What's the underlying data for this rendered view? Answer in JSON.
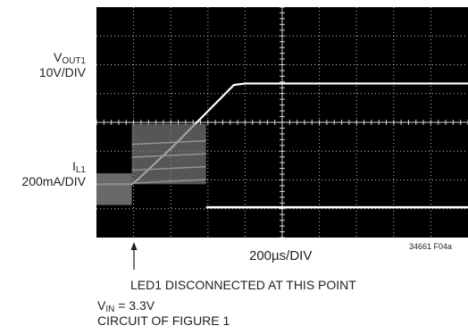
{
  "chart_data": {
    "type": "line",
    "title": "",
    "time_per_div": "200µs/DIV",
    "figure_id": "34661 F04a",
    "grid": true,
    "divisions": {
      "x": 10,
      "y": 8
    },
    "annotation": "LED1 DISCONNECTED AT THIS POINT",
    "conditions": [
      "V_IN = 3.3V",
      "CIRCUIT OF FIGURE 1"
    ],
    "channels": [
      {
        "name": "V_OUT1",
        "scale": "10V/DIV",
        "points_div": [
          [
            0,
            1.85
          ],
          [
            0.95,
            1.85
          ],
          [
            1.1,
            2.0
          ],
          [
            2.05,
            3.15
          ],
          [
            3.7,
            5.3
          ],
          [
            4.0,
            5.35
          ],
          [
            10,
            5.35
          ]
        ]
      },
      {
        "name": "I_L1",
        "scale": "200mA/DIV",
        "points_div": [
          [
            0,
            1.68
          ],
          [
            0.95,
            1.68
          ],
          [
            0.95,
            3.6
          ],
          [
            2.95,
            3.6
          ],
          [
            2.95,
            1.05
          ],
          [
            10,
            1.05
          ]
        ]
      }
    ]
  },
  "labels": {
    "ch1_name_main": "V",
    "ch1_name_sub": "OUT1",
    "ch1_scale": "10V/DIV",
    "ch2_name_main": "I",
    "ch2_name_sub": "L1",
    "ch2_scale": "200mA/DIV",
    "timebase": "200µs/DIV",
    "figure_id": "34661 F04a",
    "annotation": "LED1 DISCONNECTED AT THIS POINT",
    "cond_vin_main": "V",
    "cond_vin_sub": "IN",
    "cond_vin_value": " = 3.3V",
    "cond_circuit": "CIRCUIT OF FIGURE 1"
  },
  "colors": {
    "screen": "#000000",
    "grid": "#ffffff",
    "trace": "#ffffff",
    "current_band": "#7a7a7a"
  }
}
